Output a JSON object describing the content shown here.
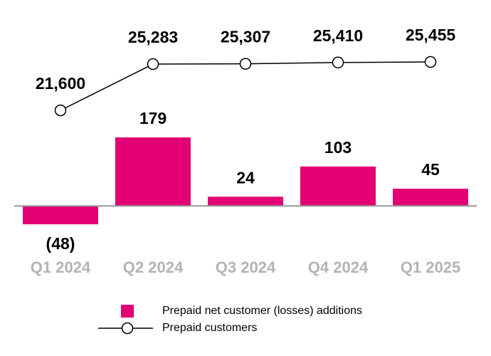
{
  "chart_data": {
    "type": "bar_line",
    "categories": [
      "Q1 2024",
      "Q2 2024",
      "Q3 2024",
      "Q4 2024",
      "Q1 2025"
    ],
    "series": [
      {
        "name": "Prepaid net customer (losses) additions",
        "type": "bar",
        "color": "#e20074",
        "values": [
          -48,
          179,
          24,
          103,
          45
        ],
        "value_labels": [
          "(48)",
          "179",
          "24",
          "103",
          "45"
        ]
      },
      {
        "name": "Prepaid customers",
        "type": "line",
        "axis": "y2",
        "color": "#000000",
        "values": [
          21600,
          25283,
          25307,
          25410,
          25455
        ],
        "value_labels": [
          "21,600",
          "25,283",
          "25,307",
          "25,410",
          "25,455"
        ]
      }
    ]
  }
}
